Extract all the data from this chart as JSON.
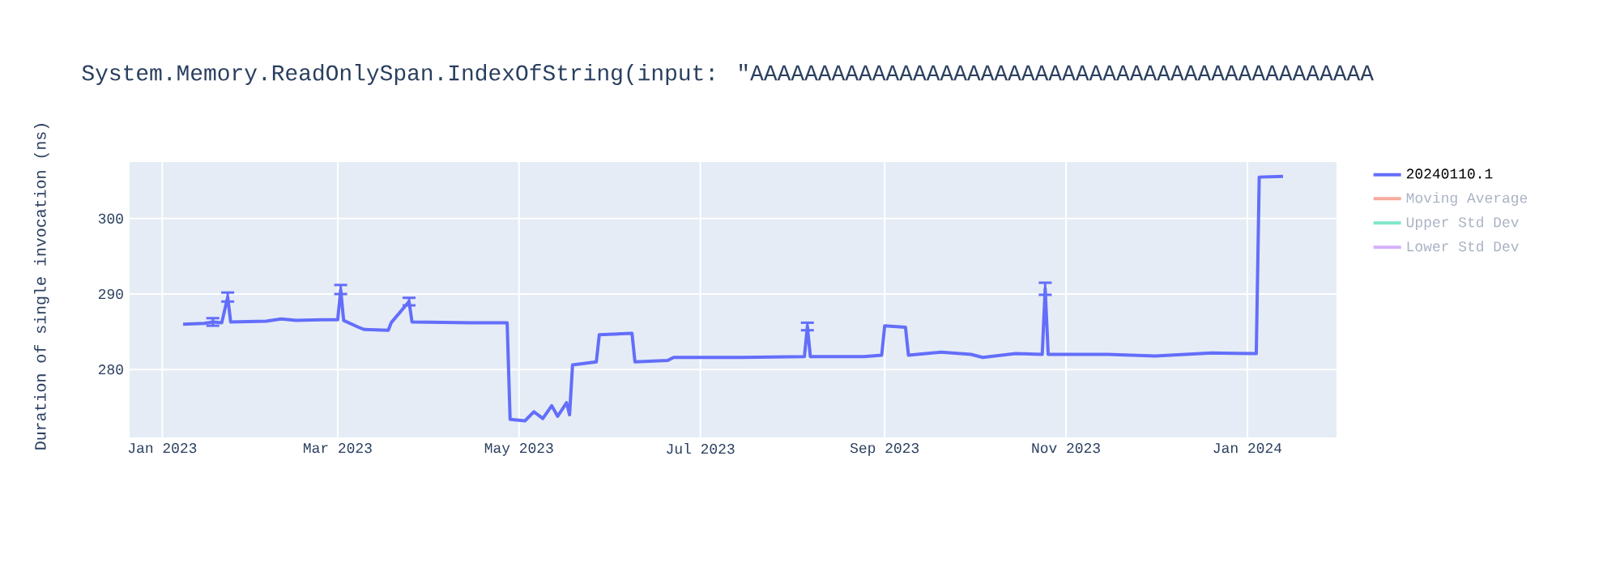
{
  "chart_data": {
    "type": "line",
    "title": "System.Memory.ReadOnlySpan.IndexOfString(input: \"AAAAAAAAAAAAAAAAAAAAAAAAAAAAAAAAAAAAAAAAAAAAAA",
    "ylabel": "Duration of single invocation (ns)",
    "x": [
      "2023-01-08",
      "2023-01-15",
      "2023-01-18",
      "2023-01-21",
      "2023-01-23",
      "2023-01-24",
      "2023-02-05",
      "2023-02-10",
      "2023-02-15",
      "2023-02-24",
      "2023-03-01",
      "2023-03-02",
      "2023-03-03",
      "2023-03-08",
      "2023-03-10",
      "2023-03-18",
      "2023-03-19",
      "2023-03-25",
      "2023-03-26",
      "2023-04-15",
      "2023-04-27",
      "2023-04-28",
      "2023-05-03",
      "2023-05-06",
      "2023-05-09",
      "2023-05-12",
      "2023-05-14",
      "2023-05-17",
      "2023-05-18",
      "2023-05-19",
      "2023-05-27",
      "2023-05-28",
      "2023-06-08",
      "2023-06-09",
      "2023-06-20",
      "2023-06-22",
      "2023-07-15",
      "2023-08-05",
      "2023-08-06",
      "2023-08-07",
      "2023-08-25",
      "2023-08-31",
      "2023-09-01",
      "2023-09-08",
      "2023-09-09",
      "2023-09-20",
      "2023-09-30",
      "2023-10-04",
      "2023-10-15",
      "2023-10-24",
      "2023-10-25",
      "2023-10-26",
      "2023-11-15",
      "2023-12-01",
      "2023-12-20",
      "2024-01-04",
      "2024-01-05",
      "2024-01-13"
    ],
    "series": [
      {
        "name": "20240110.1",
        "color": "#636efa",
        "values": [
          286.0,
          286.1,
          286.3,
          286.2,
          289.6,
          286.3,
          286.4,
          286.7,
          286.5,
          286.6,
          286.6,
          290.6,
          286.5,
          285.6,
          285.3,
          285.2,
          286.2,
          289.0,
          286.3,
          286.2,
          286.2,
          273.4,
          273.2,
          274.4,
          273.5,
          275.2,
          273.8,
          275.6,
          274.0,
          280.6,
          281.0,
          284.6,
          284.8,
          281.0,
          281.2,
          281.6,
          281.6,
          281.7,
          285.7,
          281.7,
          281.7,
          281.9,
          285.8,
          285.6,
          281.9,
          282.3,
          282.0,
          281.6,
          282.1,
          282.0,
          290.7,
          282.0,
          282.0,
          281.8,
          282.2,
          282.1,
          305.5,
          305.6
        ],
        "errors": [
          null,
          null,
          0.5,
          null,
          0.6,
          null,
          null,
          null,
          null,
          null,
          null,
          0.6,
          null,
          null,
          null,
          null,
          null,
          0.5,
          null,
          null,
          null,
          null,
          null,
          null,
          null,
          null,
          null,
          null,
          null,
          null,
          null,
          null,
          null,
          null,
          null,
          null,
          null,
          null,
          0.5,
          null,
          null,
          null,
          null,
          null,
          null,
          null,
          null,
          null,
          null,
          null,
          0.8,
          null,
          null,
          null,
          null,
          null,
          null,
          null
        ]
      },
      {
        "name": "Moving Average",
        "color": "#f7aa9d",
        "values": [
          null,
          null,
          null,
          null,
          null,
          null,
          null,
          null,
          null,
          null,
          null,
          null,
          null,
          null,
          null,
          null,
          null,
          null,
          null,
          null,
          null,
          null,
          null,
          null,
          null,
          null,
          null,
          null,
          null,
          null,
          null,
          null,
          null,
          null,
          null,
          null,
          null,
          null,
          null,
          null,
          null,
          null,
          null,
          null,
          null,
          null,
          null,
          null,
          null,
          null,
          null,
          null,
          null,
          null,
          null,
          null,
          null,
          null
        ]
      },
      {
        "name": "Upper Std Dev",
        "color": "#80e6cb",
        "values": [
          null,
          null,
          null,
          null,
          null,
          null,
          null,
          null,
          null,
          null,
          null,
          null,
          null,
          null,
          null,
          null,
          null,
          null,
          null,
          null,
          null,
          null,
          null,
          null,
          null,
          null,
          null,
          null,
          null,
          null,
          null,
          null,
          null,
          null,
          null,
          null,
          null,
          null,
          null,
          null,
          null,
          null,
          null,
          null,
          null,
          null,
          null,
          null,
          null,
          null,
          null,
          null,
          null,
          null,
          null,
          null,
          null,
          null
        ]
      },
      {
        "name": "Lower Std Dev",
        "color": "#d5b1fd",
        "values": [
          null,
          null,
          null,
          null,
          null,
          null,
          null,
          null,
          null,
          null,
          null,
          null,
          null,
          null,
          null,
          null,
          null,
          null,
          null,
          null,
          null,
          null,
          null,
          null,
          null,
          null,
          null,
          null,
          null,
          null,
          null,
          null,
          null,
          null,
          null,
          null,
          null,
          null,
          null,
          null,
          null,
          null,
          null,
          null,
          null,
          null,
          null,
          null,
          null,
          null,
          null,
          null,
          null,
          null,
          null,
          null,
          null,
          null
        ]
      }
    ],
    "xlim": [
      "2022-12-21",
      "2024-01-31"
    ],
    "xticks": [
      {
        "value": "2023-01-01",
        "label": "Jan 2023"
      },
      {
        "value": "2023-03-01",
        "label": "Mar 2023"
      },
      {
        "value": "2023-05-01",
        "label": "May 2023"
      },
      {
        "value": "2023-07-01",
        "label": "Jul 2023"
      },
      {
        "value": "2023-09-01",
        "label": "Sep 2023"
      },
      {
        "value": "2023-11-01",
        "label": "Nov 2023"
      },
      {
        "value": "2024-01-01",
        "label": "Jan 2024"
      }
    ],
    "ylim": [
      271,
      307.5
    ],
    "yticks": [
      280,
      290,
      300
    ],
    "grid": true,
    "legend": "right",
    "marker": "none",
    "line_style": "solid"
  }
}
